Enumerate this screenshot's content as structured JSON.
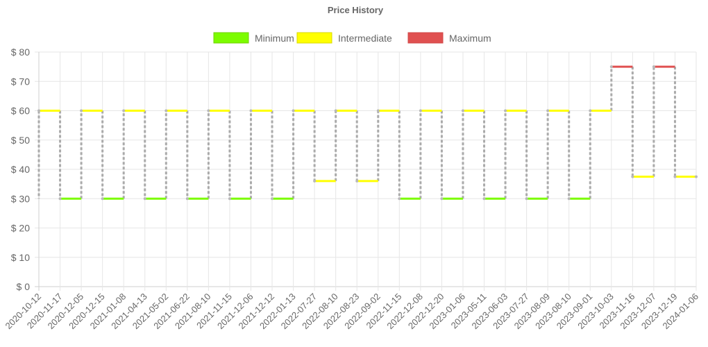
{
  "chart_data": {
    "type": "line",
    "title": "Price History",
    "y_tick_prefix": "$ ",
    "ylim": [
      0,
      80
    ],
    "y_ticks": [
      0,
      10,
      20,
      30,
      40,
      50,
      60,
      70,
      80
    ],
    "grid": true,
    "legend_position": "top-center",
    "levels": [
      {
        "name": "Minimum",
        "color": "#7cfc00",
        "border": "#6fd000"
      },
      {
        "name": "Intermediate",
        "color": "#ffff00",
        "border": "#d8d800"
      },
      {
        "name": "Maximum",
        "color": "#e05050",
        "border": "#d04848"
      }
    ],
    "connector_color": "#aaaaaa",
    "x": [
      "2020-10-12",
      "2020-11-17",
      "2020-12-05",
      "2020-12-15",
      "2021-01-08",
      "2021-04-13",
      "2021-05-02",
      "2021-06-22",
      "2021-08-10",
      "2021-11-15",
      "2021-12-06",
      "2021-12-12",
      "2022-01-13",
      "2022-07-27",
      "2022-08-10",
      "2022-08-23",
      "2022-09-02",
      "2022-11-15",
      "2022-12-08",
      "2022-12-20",
      "2023-01-06",
      "2023-05-11",
      "2023-06-03",
      "2023-07-27",
      "2023-08-09",
      "2023-08-10",
      "2023-09-01",
      "2023-10-03",
      "2023-11-16",
      "2023-12-07",
      "2023-12-19",
      "2024-01-06"
    ],
    "values": [
      60,
      30,
      60,
      30,
      60,
      30,
      60,
      30,
      60,
      30,
      60,
      30,
      60,
      36,
      60,
      36,
      60,
      30,
      60,
      30,
      60,
      30,
      60,
      30,
      60,
      30,
      60,
      75,
      37.5,
      75,
      37.5,
      37.5
    ],
    "value_levels": [
      "Intermediate",
      "Minimum",
      "Intermediate",
      "Minimum",
      "Intermediate",
      "Minimum",
      "Intermediate",
      "Minimum",
      "Intermediate",
      "Minimum",
      "Intermediate",
      "Minimum",
      "Intermediate",
      "Intermediate",
      "Intermediate",
      "Intermediate",
      "Intermediate",
      "Minimum",
      "Intermediate",
      "Minimum",
      "Intermediate",
      "Minimum",
      "Intermediate",
      "Minimum",
      "Intermediate",
      "Minimum",
      "Intermediate",
      "Maximum",
      "Intermediate",
      "Maximum",
      "Intermediate",
      "Intermediate"
    ]
  }
}
